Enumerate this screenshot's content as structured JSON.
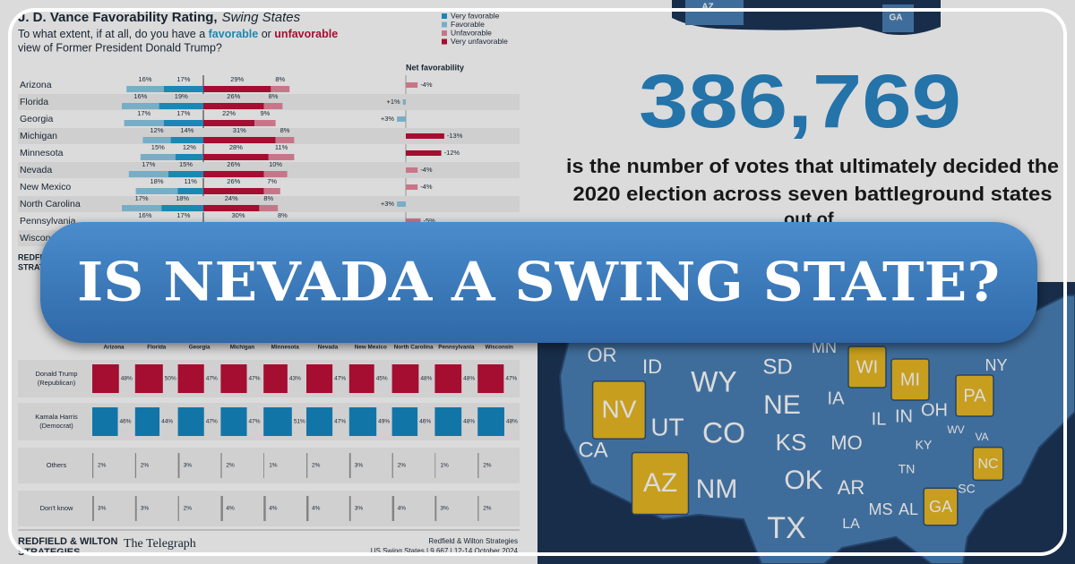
{
  "favorability": {
    "title": "J. D. Vance Favorability Rating,",
    "title_suffix": "Swing States",
    "question": [
      "To what extent, if at all, do you have a ",
      "favorable",
      " or ",
      "unfavorable"
    ],
    "question_line2": "view of Former President Donald Trump?",
    "legend": [
      {
        "name": "Very favorable",
        "color": "#1f9fd0"
      },
      {
        "name": "Favorable",
        "color": "#8ccbe6"
      },
      {
        "name": "Unfavorable",
        "color": "#e88aa0"
      },
      {
        "name": "Very unfavorable",
        "color": "#c0103a"
      }
    ],
    "net_header": "Net favorability",
    "rows": [
      {
        "state": "Arizona",
        "values": [
          16,
          17,
          29,
          8
        ],
        "value_labels": [
          "16%",
          "17%",
          "29%",
          "8%"
        ],
        "net": -4,
        "net_label": "-4%"
      },
      {
        "state": "Florida",
        "values": [
          16,
          19,
          26,
          8
        ],
        "value_labels": [
          "16%",
          "19%",
          "26%",
          "8%"
        ],
        "net": 1,
        "net_label": "+1%"
      },
      {
        "state": "Georgia",
        "values": [
          17,
          17,
          22,
          9
        ],
        "value_labels": [
          "17%",
          "17%",
          "22%",
          "9%"
        ],
        "net": 3,
        "net_label": "+3%"
      },
      {
        "state": "Michigan",
        "values": [
          12,
          14,
          31,
          8
        ],
        "value_labels": [
          "12%",
          "14%",
          "31%",
          "8%"
        ],
        "net": -13,
        "net_label": "-13%"
      },
      {
        "state": "Minnesota",
        "values": [
          15,
          12,
          28,
          11
        ],
        "value_labels": [
          "15%",
          "12%",
          "28%",
          "11%"
        ],
        "net": -12,
        "net_label": "-12%"
      },
      {
        "state": "Nevada",
        "values": [
          17,
          15,
          26,
          10
        ],
        "value_labels": [
          "17%",
          "15%",
          "26%",
          "10%"
        ],
        "net": -4,
        "net_label": "-4%"
      },
      {
        "state": "New Mexico",
        "values": [
          18,
          11,
          26,
          7
        ],
        "value_labels": [
          "18%",
          "11%",
          "26%",
          "7%"
        ],
        "net": -4,
        "net_label": "-4%"
      },
      {
        "state": "North Carolina",
        "values": [
          17,
          18,
          24,
          8
        ],
        "value_labels": [
          "17%",
          "18%",
          "24%",
          "8%"
        ],
        "net": 3,
        "net_label": "+3%"
      },
      {
        "state": "Pennsylvania",
        "values": [
          16,
          17,
          30,
          8
        ],
        "value_labels": [
          "16%",
          "17%",
          "30%",
          "8%"
        ],
        "net": -5,
        "net_label": "-5%"
      },
      {
        "state": "Wisconsin"
      }
    ],
    "source": "REDFIELD & WILTON",
    "source2": "STRATEGIES"
  },
  "poll": {
    "columns": [
      "Arizona",
      "Florida",
      "Georgia",
      "Michigan",
      "Minnesota",
      "Nevada",
      "New Mexico",
      "North Carolina",
      "Pennsylvania",
      "Wisconsin"
    ],
    "rows": [
      {
        "label": "Donald Trump",
        "sublabel": "(Republican)",
        "color": "#c0103a",
        "values": [
          48,
          50,
          47,
          47,
          43,
          47,
          45,
          48,
          48,
          47
        ],
        "value_labels": [
          "48%",
          "50%",
          "47%",
          "47%",
          "43%",
          "47%",
          "45%",
          "48%",
          "48%",
          "47%"
        ]
      },
      {
        "label": "Kamala Harris",
        "sublabel": "(Democrat)",
        "color": "#1689c4",
        "values": [
          46,
          44,
          47,
          47,
          51,
          47,
          49,
          46,
          48,
          48
        ],
        "value_labels": [
          "46%",
          "44%",
          "47%",
          "47%",
          "51%",
          "47%",
          "49%",
          "46%",
          "48%",
          "48%"
        ]
      },
      {
        "label": "Others",
        "color": "#999999",
        "values": [
          2,
          2,
          3,
          2,
          1,
          2,
          3,
          2,
          1,
          2
        ],
        "value_labels": [
          "2%",
          "2%",
          "3%",
          "2%",
          "1%",
          "2%",
          "3%",
          "2%",
          "1%",
          "2%"
        ]
      },
      {
        "label": "Don't know",
        "color": "#999999",
        "values": [
          3,
          3,
          2,
          4,
          4,
          4,
          3,
          4,
          3,
          2
        ],
        "value_labels": [
          "3%",
          "3%",
          "2%",
          "4%",
          "4%",
          "4%",
          "3%",
          "4%",
          "3%",
          "2%"
        ]
      }
    ],
    "footer_left": "REDFIELD & WILTON",
    "footer_left2": "STRATEGIES",
    "footer_logo": "The Telegraph",
    "footer_right": "Redfield & Wilton Strategies",
    "footer_right2": "US Swing States | 9,667 | 12-14 October 2024"
  },
  "infographic": {
    "votes": "386,769",
    "line1": "is the number of votes that ultimately decided the",
    "line2": "2020 election across seven battleground states",
    "out_of": "out of"
  },
  "map": {
    "top_labels": [
      "AZ",
      "GA"
    ],
    "states": [
      {
        "abbr": "OR",
        "swing": false
      },
      {
        "abbr": "ID",
        "swing": false
      },
      {
        "abbr": "WY",
        "swing": false
      },
      {
        "abbr": "SD",
        "swing": false
      },
      {
        "abbr": "MN",
        "swing": false
      },
      {
        "abbr": "WI",
        "swing": true
      },
      {
        "abbr": "MI",
        "swing": true
      },
      {
        "abbr": "NY",
        "swing": false
      },
      {
        "abbr": "NV",
        "swing": true
      },
      {
        "abbr": "UT",
        "swing": false
      },
      {
        "abbr": "CO",
        "swing": false
      },
      {
        "abbr": "NE",
        "swing": false
      },
      {
        "abbr": "IA",
        "swing": false
      },
      {
        "abbr": "IL",
        "swing": false
      },
      {
        "abbr": "IN",
        "swing": false
      },
      {
        "abbr": "OH",
        "swing": false
      },
      {
        "abbr": "PA",
        "swing": true
      },
      {
        "abbr": "CA",
        "swing": false
      },
      {
        "abbr": "KS",
        "swing": false
      },
      {
        "abbr": "MO",
        "swing": false
      },
      {
        "abbr": "KY",
        "swing": false
      },
      {
        "abbr": "WV",
        "swing": false
      },
      {
        "abbr": "VA",
        "swing": false
      },
      {
        "abbr": "AZ",
        "swing": true
      },
      {
        "abbr": "NM",
        "swing": false
      },
      {
        "abbr": "OK",
        "swing": false
      },
      {
        "abbr": "AR",
        "swing": false
      },
      {
        "abbr": "TN",
        "swing": false
      },
      {
        "abbr": "NC",
        "swing": true
      },
      {
        "abbr": "SC",
        "swing": false
      },
      {
        "abbr": "TX",
        "swing": false
      },
      {
        "abbr": "LA",
        "swing": false
      },
      {
        "abbr": "MS",
        "swing": false
      },
      {
        "abbr": "AL",
        "swing": false
      },
      {
        "abbr": "GA",
        "swing": true
      }
    ]
  },
  "banner": {
    "title": "IS NEVADA A SWING STATE?"
  }
}
